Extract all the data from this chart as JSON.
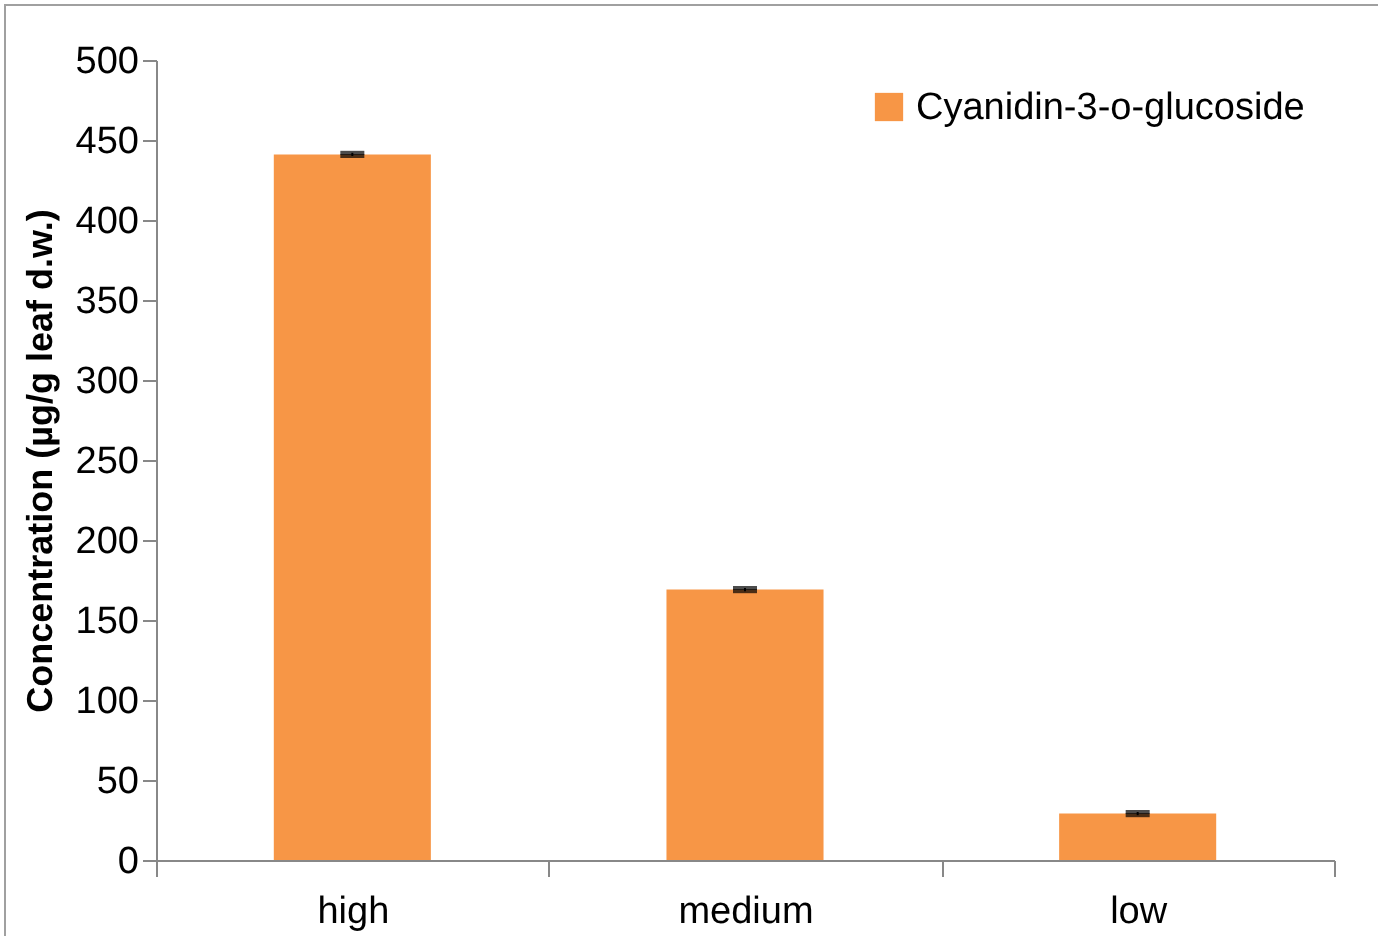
{
  "chart_data": {
    "type": "bar",
    "ylabel": "Concentration (µg/g leaf d.w.)",
    "categories": [
      "high",
      "medium",
      "low"
    ],
    "series": [
      {
        "name": "Cyanidin-3-o-glucoside",
        "color": "#f79646",
        "values": [
          441,
          169,
          29
        ],
        "errors": [
          1,
          1,
          1
        ]
      }
    ],
    "ylim": [
      0,
      500
    ],
    "yticks": [
      0,
      50,
      100,
      150,
      200,
      250,
      300,
      350,
      400,
      450,
      500
    ],
    "grid": false,
    "legend": "top right"
  }
}
